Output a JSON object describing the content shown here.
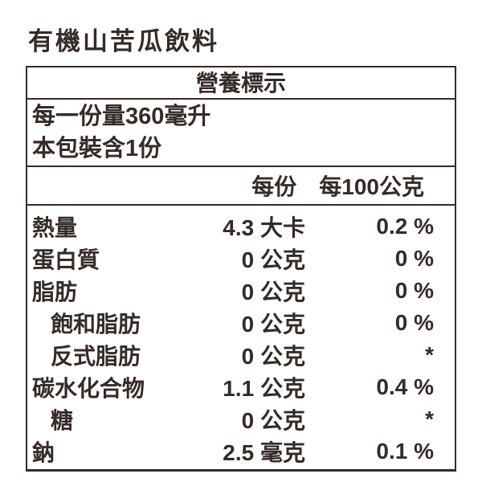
{
  "title": "有機山苦瓜飲料",
  "panel": {
    "header": "營養標示",
    "serving": {
      "serving_size_line": "每一份量360毫升",
      "servings_per_package_line": "本包裝含1份"
    },
    "columns": {
      "per_serving": "每份",
      "per_100g": "每100公克"
    },
    "rows": [
      {
        "label": "熱量",
        "indent": false,
        "per_serving": "4.3 大卡",
        "per_100g": "0.2 %"
      },
      {
        "label": "蛋白質",
        "indent": false,
        "per_serving": "0 公克",
        "per_100g": "0 %"
      },
      {
        "label": "脂肪",
        "indent": false,
        "per_serving": "0 公克",
        "per_100g": "0 %"
      },
      {
        "label": "飽和脂肪",
        "indent": true,
        "per_serving": "0 公克",
        "per_100g": "0 %"
      },
      {
        "label": "反式脂肪",
        "indent": true,
        "per_serving": "0 公克",
        "per_100g": "*"
      },
      {
        "label": "碳水化合物",
        "indent": false,
        "per_serving": "1.1 公克",
        "per_100g": "0.4 %"
      },
      {
        "label": "糖",
        "indent": true,
        "per_serving": "0 公克",
        "per_100g": "*"
      },
      {
        "label": "鈉",
        "indent": false,
        "per_serving": "2.5 毫克",
        "per_100g": "0.1 %"
      }
    ],
    "colors": {
      "text": "#352b27",
      "border": "#352b27",
      "background": "#ffffff"
    }
  }
}
